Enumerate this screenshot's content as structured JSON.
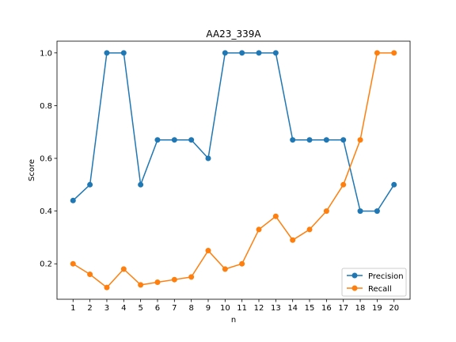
{
  "chart_data": {
    "type": "line",
    "title": "AA23_339A",
    "xlabel": "n",
    "ylabel": "Score",
    "x": [
      1,
      2,
      3,
      4,
      5,
      6,
      7,
      8,
      9,
      10,
      11,
      12,
      13,
      14,
      15,
      16,
      17,
      18,
      19,
      20
    ],
    "x_ticks": [
      "1",
      "2",
      "3",
      "4",
      "5",
      "6",
      "7",
      "8",
      "9",
      "10",
      "11",
      "12",
      "13",
      "14",
      "15",
      "16",
      "17",
      "18",
      "19",
      "20"
    ],
    "y_ticks": [
      "0.2",
      "0.4",
      "0.6",
      "0.8",
      "1.0"
    ],
    "y_tick_values": [
      0.2,
      0.4,
      0.6,
      0.8,
      1.0
    ],
    "xlim": [
      0.05,
      20.95
    ],
    "ylim": [
      0.0655,
      1.0445
    ],
    "grid": false,
    "legend_position": "lower-right",
    "series": [
      {
        "name": "Precision",
        "color": "#1f77b4",
        "values": [
          0.44,
          0.5,
          1.0,
          1.0,
          0.5,
          0.67,
          0.67,
          0.67,
          0.6,
          1.0,
          1.0,
          1.0,
          1.0,
          0.67,
          0.67,
          0.67,
          0.67,
          0.4,
          0.4,
          0.5
        ]
      },
      {
        "name": "Recall",
        "color": "#ff7f0e",
        "values": [
          0.2,
          0.16,
          0.11,
          0.18,
          0.12,
          0.13,
          0.14,
          0.15,
          0.25,
          0.18,
          0.2,
          0.33,
          0.38,
          0.29,
          0.33,
          0.4,
          0.5,
          0.67,
          1.0,
          1.0
        ]
      }
    ]
  }
}
